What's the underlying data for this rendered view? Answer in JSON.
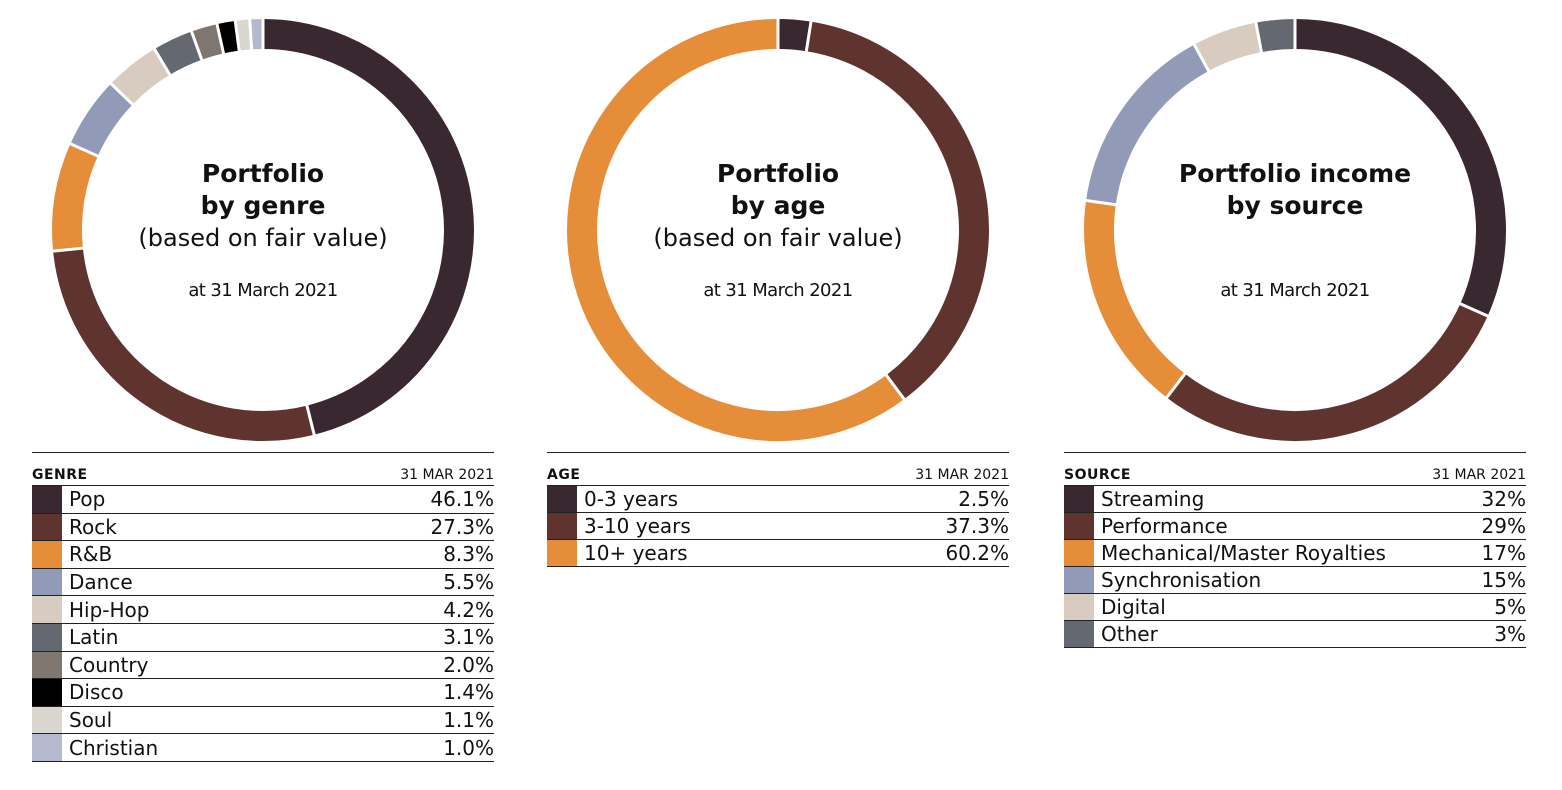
{
  "chart_data": [
    {
      "type": "pie",
      "title": "Portfolio by genre",
      "title_lines": [
        "Portfolio",
        "by genre"
      ],
      "subtitle": "(based on fair value)",
      "date": "at 31 March 2021",
      "legend": {
        "category_header": "GENRE",
        "value_header": "31 MAR 2021"
      },
      "slices": [
        {
          "label": "Pop",
          "value": 46.1,
          "display": "46.1%",
          "color": "#3a2830"
        },
        {
          "label": "Rock",
          "value": 27.3,
          "display": "27.3%",
          "color": "#5f332e"
        },
        {
          "label": "R&B",
          "value": 8.3,
          "display": "8.3%",
          "color": "#e68d3a"
        },
        {
          "label": "Dance",
          "value": 5.5,
          "display": "5.5%",
          "color": "#919bb8"
        },
        {
          "label": "Hip-Hop",
          "value": 4.2,
          "display": "4.2%",
          "color": "#d8cbbf"
        },
        {
          "label": "Latin",
          "value": 3.1,
          "display": "3.1%",
          "color": "#646870"
        },
        {
          "label": "Country",
          "value": 2.0,
          "display": "2.0%",
          "color": "#807670"
        },
        {
          "label": "Disco",
          "value": 1.4,
          "display": "1.4%",
          "color": "#000000"
        },
        {
          "label": "Soul",
          "value": 1.1,
          "display": "1.1%",
          "color": "#d9d6d0"
        },
        {
          "label": "Christian",
          "value": 1.0,
          "display": "1.0%",
          "color": "#b5b9d0"
        }
      ]
    },
    {
      "type": "pie",
      "title": "Portfolio by age",
      "title_lines": [
        "Portfolio",
        "by age"
      ],
      "subtitle": "(based on fair value)",
      "date": "at 31 March 2021",
      "legend": {
        "category_header": "AGE",
        "value_header": "31 MAR 2021"
      },
      "slices": [
        {
          "label": "0-3 years",
          "value": 2.5,
          "display": "2.5%",
          "color": "#3a2830"
        },
        {
          "label": "3-10 years",
          "value": 37.3,
          "display": "37.3%",
          "color": "#5f332e"
        },
        {
          "label": "10+ years",
          "value": 60.2,
          "display": "60.2%",
          "color": "#e68d3a"
        }
      ]
    },
    {
      "type": "pie",
      "title": "Portfolio income by source",
      "title_lines": [
        "Portfolio income",
        "by source"
      ],
      "subtitle": "",
      "date": "at 31 March 2021",
      "legend": {
        "category_header": "SOURCE",
        "value_header": "31 MAR 2021"
      },
      "slices": [
        {
          "label": "Streaming",
          "value": 32,
          "display": "32%",
          "color": "#3a2830"
        },
        {
          "label": "Performance",
          "value": 29,
          "display": "29%",
          "color": "#5f332e"
        },
        {
          "label": "Mechanical/Master Royalties",
          "value": 17,
          "display": "17%",
          "color": "#e68d3a"
        },
        {
          "label": "Synchronisation",
          "value": 15,
          "display": "15%",
          "color": "#919bb8"
        },
        {
          "label": "Digital",
          "value": 5,
          "display": "5%",
          "color": "#d8cbbf"
        },
        {
          "label": "Other",
          "value": 3,
          "display": "3%",
          "color": "#646870"
        }
      ]
    }
  ]
}
